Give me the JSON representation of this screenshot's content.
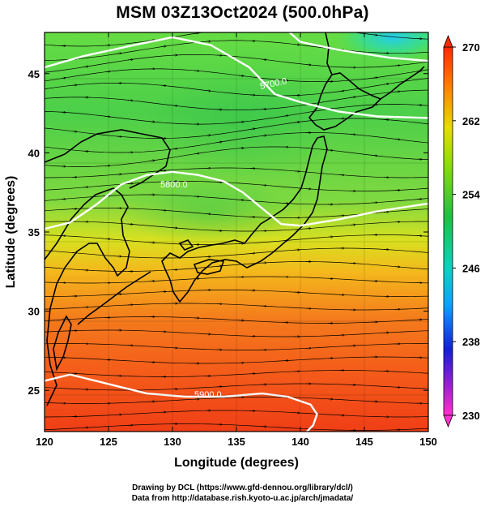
{
  "title": "MSM 03Z13Oct2024 (500.0hPa)",
  "x_axis": {
    "label": "Longitude (degrees)",
    "ticks": [
      "120",
      "125",
      "130",
      "135",
      "140",
      "145",
      "150"
    ]
  },
  "y_axis": {
    "label": "Latitude  (degrees)",
    "ticks": [
      "25",
      "30",
      "35",
      "40",
      "45"
    ]
  },
  "colorbar": {
    "ticks": [
      "270",
      "262",
      "254",
      "246",
      "238",
      "230"
    ],
    "min": 230,
    "max": 270,
    "colors": [
      "#e020e0",
      "#2020e0",
      "#00c8ff",
      "#30d040",
      "#f0e000",
      "#ff2000"
    ]
  },
  "contour_labels": [
    "5700.0",
    "5800.0",
    "5900.0"
  ],
  "credits": {
    "line1": "Drawing by DCL (https://www.gfd-dennou.org/library/dcl/)",
    "line2": "Data from http://database.rish.kyoto-u.ac.jp/arch/jmadata/"
  },
  "chart_data": {
    "type": "heatmap",
    "title": "MSM 03Z13Oct2024 (500.0hPa)",
    "xlabel": "Longitude (degrees)",
    "ylabel": "Latitude  (degrees)",
    "xlim": [
      120,
      150
    ],
    "ylim": [
      22.4,
      47.6
    ],
    "xticks": [
      120,
      125,
      130,
      135,
      140,
      145,
      150
    ],
    "yticks": [
      25,
      30,
      35,
      40,
      45
    ],
    "colorbar": {
      "min": 230,
      "max": 270,
      "ticks": [
        270,
        262,
        254,
        246,
        238,
        230
      ]
    },
    "contours": [
      {
        "label": "5700.0",
        "points": [
          [
            138.6,
            48.0
          ],
          [
            140.0,
            47.0
          ],
          [
            143.0,
            46.5
          ],
          [
            147.0,
            46.0
          ],
          [
            150.0,
            45.8
          ]
        ]
      },
      {
        "label": "5800.0",
        "points": [
          [
            120.0,
            45.4
          ],
          [
            123.0,
            46.1
          ],
          [
            127.0,
            46.8
          ],
          [
            130.0,
            47.3
          ],
          [
            133.0,
            46.8
          ],
          [
            136.0,
            45.4
          ],
          [
            138.0,
            43.7
          ],
          [
            140.0,
            43.2
          ],
          [
            143.0,
            42.6
          ],
          [
            146.0,
            42.3
          ],
          [
            150.0,
            42.2
          ]
        ]
      },
      {
        "label": "5900.0",
        "points": [
          [
            120.0,
            35.2
          ],
          [
            122.0,
            35.6
          ],
          [
            124.0,
            36.7
          ],
          [
            126.0,
            38.0
          ],
          [
            128.0,
            38.6
          ],
          [
            130.0,
            38.8
          ],
          [
            132.0,
            38.6
          ],
          [
            134.0,
            38.2
          ],
          [
            135.5,
            37.5
          ],
          [
            137.0,
            36.5
          ],
          [
            138.5,
            35.5
          ],
          [
            140.0,
            35.4
          ],
          [
            143.0,
            35.8
          ],
          [
            146.0,
            36.3
          ],
          [
            150.0,
            36.8
          ]
        ]
      },
      {
        "label": "5900.0",
        "points": [
          [
            120.0,
            25.6
          ],
          [
            122.0,
            26.0
          ],
          [
            125.0,
            25.4
          ],
          [
            128.0,
            24.8
          ],
          [
            131.0,
            24.6
          ],
          [
            134.0,
            24.6
          ],
          [
            137.0,
            24.8
          ],
          [
            139.0,
            24.6
          ],
          [
            140.8,
            24.1
          ],
          [
            141.3,
            23.5
          ],
          [
            141.0,
            22.8
          ],
          [
            140.5,
            22.4
          ]
        ]
      }
    ]
  }
}
